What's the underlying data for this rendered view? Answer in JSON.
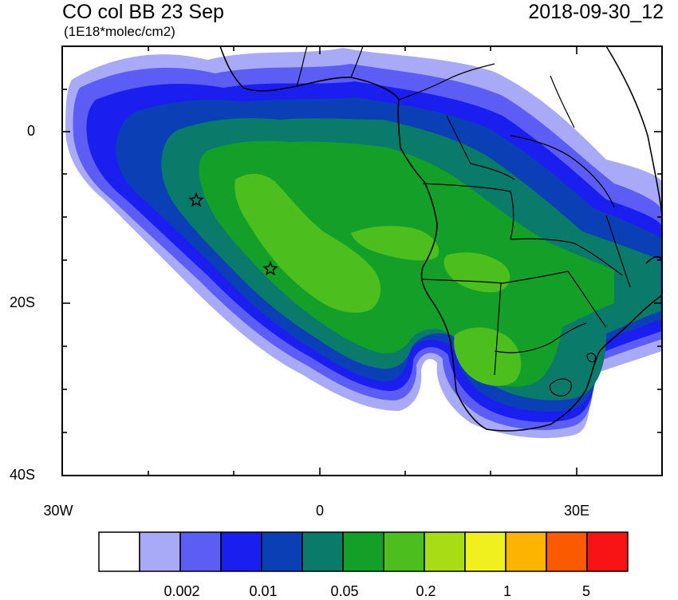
{
  "header": {
    "title": "CO col BB 23 Sep",
    "timestamp": "2018-09-30_12",
    "units": "(1E18*molec/cm2)"
  },
  "map": {
    "y_ticks": [
      "0",
      "20S",
      "40S"
    ],
    "x_ticks": [
      "30W",
      "0",
      "30E"
    ],
    "markers": [
      "star",
      "star"
    ]
  },
  "colorbar": {
    "colors": [
      "#ffffff",
      "#a9aaf7",
      "#5b5df5",
      "#1a1ff0",
      "#0b3fb5",
      "#0a7a6a",
      "#14a028",
      "#4cbf1e",
      "#a8dc14",
      "#f0f01e",
      "#fcb400",
      "#fc5a00",
      "#f81414"
    ],
    "labels": [
      "0.002",
      "0.01",
      "0.05",
      "0.2",
      "1",
      "5"
    ]
  }
}
